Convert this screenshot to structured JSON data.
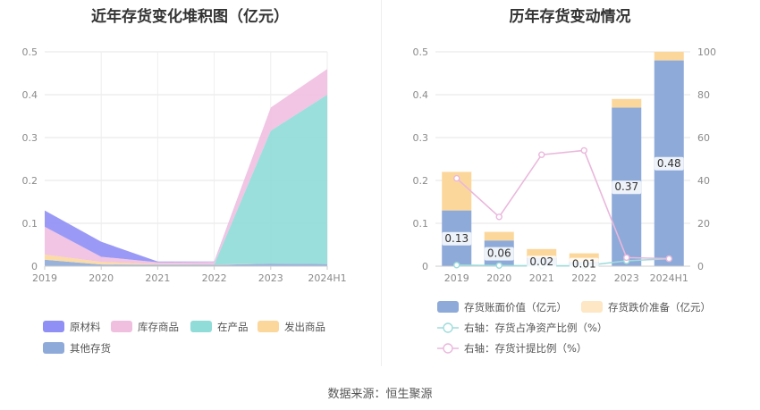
{
  "left_title": "近年存货变化堆积图（亿元）",
  "right_title": "历年存货变动情况",
  "source": "数据来源：恒生聚源",
  "chart_data": [
    {
      "type": "area",
      "title": "近年存货变化堆积图（亿元）",
      "x": [
        "2019",
        "2020",
        "2021",
        "2022",
        "2023",
        "2024H1"
      ],
      "ylim": [
        0,
        0.5
      ],
      "yticks": [
        "0",
        "0.1",
        "0.2",
        "0.3",
        "0.4",
        "0.5"
      ],
      "grid": true,
      "legend_position": "bottom",
      "series": [
        {
          "name": "其他存货",
          "color": "#8eaad8",
          "values": [
            0.015,
            0.004,
            0.003,
            0.003,
            0.006,
            0.005
          ]
        },
        {
          "name": "发出商品",
          "color": "#fcd79c",
          "values": [
            0.012,
            0.006,
            0.002,
            0.001,
            0.0,
            0.0
          ]
        },
        {
          "name": "在产品",
          "color": "#8fdcd8",
          "values": [
            0.0,
            0.0,
            0.0,
            0.0,
            0.31,
            0.395
          ]
        },
        {
          "name": "库存商品",
          "color": "#f0bfe0",
          "values": [
            0.065,
            0.012,
            0.004,
            0.006,
            0.054,
            0.06
          ]
        },
        {
          "name": "原材料",
          "color": "#8f8ff5",
          "values": [
            0.038,
            0.035,
            0.002,
            0.001,
            0.0,
            0.0
          ]
        }
      ],
      "legend_order": [
        "原材料",
        "库存商品",
        "在产品",
        "发出商品",
        "其他存货"
      ]
    },
    {
      "type": "bar",
      "title": "历年存货变动情况",
      "categories": [
        "2019",
        "2020",
        "2021",
        "2022",
        "2023",
        "2024H1"
      ],
      "ylim": [
        0,
        0.5
      ],
      "yticks": [
        "0",
        "0.1",
        "0.2",
        "0.3",
        "0.4",
        "0.5"
      ],
      "y2lim": [
        0,
        100
      ],
      "y2ticks": [
        "0",
        "20",
        "40",
        "60",
        "80",
        "100"
      ],
      "grid": true,
      "legend_position": "bottom",
      "series": [
        {
          "name": "存货账面价值（亿元）",
          "type": "bar",
          "color": "#8eaad8",
          "values": [
            0.13,
            0.06,
            0.02,
            0.01,
            0.37,
            0.48
          ],
          "labels": [
            "0.13",
            "0.06",
            "0.02",
            "0.01",
            "0.37",
            "0.48"
          ]
        },
        {
          "name": "存货跌价准备（亿元）",
          "type": "bar",
          "color": "#fcd79c",
          "values": [
            0.09,
            0.02,
            0.02,
            0.02,
            0.02,
            0.02
          ]
        },
        {
          "name": "右轴：存货占净资产比例（%）",
          "type": "line",
          "axis": "right",
          "color": "#9fdcdc",
          "values": [
            0.5,
            0.3,
            0.2,
            0.2,
            2.5,
            3.5
          ]
        },
        {
          "name": "右轴：存货计提比例（%）",
          "type": "line",
          "axis": "right",
          "color": "#eab8dc",
          "values": [
            41,
            23,
            52,
            54,
            4,
            3.5
          ]
        }
      ]
    }
  ]
}
